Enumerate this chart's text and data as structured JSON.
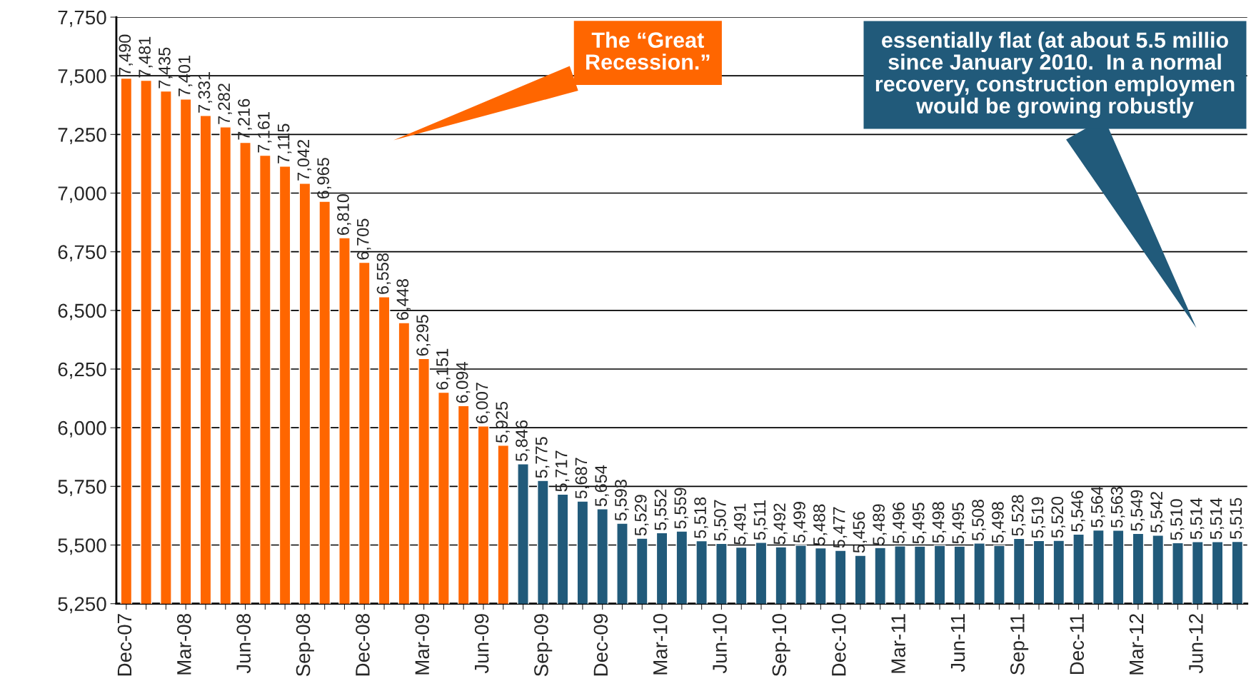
{
  "chart_data": {
    "type": "bar",
    "categories": [
      "Dec-07",
      null,
      null,
      "Mar-08",
      null,
      null,
      "Jun-08",
      null,
      null,
      "Sep-08",
      null,
      null,
      "Dec-08",
      null,
      null,
      "Mar-09",
      null,
      null,
      "Jun-09",
      null,
      null,
      "Sep-09",
      null,
      null,
      "Dec-09",
      null,
      null,
      "Mar-10",
      null,
      null,
      "Jun-10",
      null,
      null,
      "Sep-10",
      null,
      null,
      "Dec-10",
      null,
      null,
      "Mar-11",
      null,
      null,
      "Jun-11",
      null,
      null,
      "Sep-11",
      null,
      null,
      "Dec-11",
      null,
      null,
      "Mar-12",
      null,
      null,
      "Jun-12",
      null,
      null
    ],
    "values": [
      7490,
      7481,
      7435,
      7401,
      7331,
      7282,
      7216,
      7161,
      7115,
      7042,
      6965,
      6810,
      6705,
      6558,
      6448,
      6295,
      6151,
      6094,
      6007,
      5925,
      5846,
      5775,
      5717,
      5687,
      5654,
      5593,
      5529,
      5552,
      5559,
      5518,
      5507,
      5491,
      5511,
      5492,
      5499,
      5488,
      5477,
      5456,
      5489,
      5496,
      5495,
      5498,
      5495,
      5508,
      5498,
      5528,
      5519,
      5520,
      5546,
      5564,
      5563,
      5549,
      5542,
      5510,
      5514,
      5514,
      5515
    ],
    "colors": [
      "#ff6600",
      "#ff6600",
      "#ff6600",
      "#ff6600",
      "#ff6600",
      "#ff6600",
      "#ff6600",
      "#ff6600",
      "#ff6600",
      "#ff6600",
      "#ff6600",
      "#ff6600",
      "#ff6600",
      "#ff6600",
      "#ff6600",
      "#ff6600",
      "#ff6600",
      "#ff6600",
      "#ff6600",
      "#ff6600",
      "#215a7a",
      "#215a7a",
      "#215a7a",
      "#215a7a",
      "#215a7a",
      "#215a7a",
      "#215a7a",
      "#215a7a",
      "#215a7a",
      "#215a7a",
      "#215a7a",
      "#215a7a",
      "#215a7a",
      "#215a7a",
      "#215a7a",
      "#215a7a",
      "#215a7a",
      "#215a7a",
      "#215a7a",
      "#215a7a",
      "#215a7a",
      "#215a7a",
      "#215a7a",
      "#215a7a",
      "#215a7a",
      "#215a7a",
      "#215a7a",
      "#215a7a",
      "#215a7a",
      "#215a7a",
      "#215a7a",
      "#215a7a",
      "#215a7a",
      "#215a7a",
      "#215a7a",
      "#215a7a",
      "#215a7a"
    ],
    "ylim": [
      5250,
      7750
    ],
    "yticks": [
      {
        "value": 5250,
        "label": "5,250"
      },
      {
        "value": 5500,
        "label": "5,500"
      },
      {
        "value": 5750,
        "label": "5,750"
      },
      {
        "value": 6000,
        "label": "6,000"
      },
      {
        "value": 6250,
        "label": "6,250"
      },
      {
        "value": 6500,
        "label": "6,500"
      },
      {
        "value": 6750,
        "label": "6,750"
      },
      {
        "value": 7000,
        "label": "7,000"
      },
      {
        "value": 7250,
        "label": "7,250"
      },
      {
        "value": 7500,
        "label": "7,500"
      },
      {
        "value": 7750,
        "label": "7,750"
      }
    ],
    "grid": "y",
    "value_labels": [
      "7,490",
      "7,481",
      "7,435",
      "7,401",
      "7,331",
      "7,282",
      "7,216",
      "7,161",
      "7,115",
      "7,042",
      "6,965",
      "6,810",
      "6,705",
      "6,558",
      "6,448",
      "6,295",
      "6,151",
      "6,094",
      "6,007",
      "5,925",
      "5,846",
      "5,775",
      "5,717",
      "5,687",
      "5,654",
      "5,593",
      "5,529",
      "5,552",
      "5,559",
      "5,518",
      "5,507",
      "5,491",
      "5,511",
      "5,492",
      "5,499",
      "5,488",
      "5,477",
      "5,456",
      "5,489",
      "5,496",
      "5,495",
      "5,498",
      "5,495",
      "5,508",
      "5,498",
      "5,528",
      "5,519",
      "5,520",
      "5,546",
      "5,564",
      "5,563",
      "5,549",
      "5,542",
      "5,510",
      "5,514",
      "5,514",
      "5,515"
    ],
    "annotations": [
      "The “Great\nRecession.”",
      "essentially flat (at about 5.5 millio\nsince January 2010.  In a normal\nrecovery, construction employmen\nwould be growing robustly"
    ]
  }
}
